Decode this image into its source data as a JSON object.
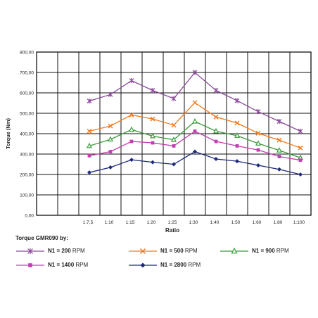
{
  "chart_data": {
    "type": "line",
    "xlabel": "Ratio",
    "ylabel": "Torque (Nm)",
    "ylim": [
      0,
      800
    ],
    "ytick_labels": [
      "0,00",
      "100,00",
      "200,00",
      "300,00",
      "400,00",
      "500,00",
      "600,00",
      "700,00",
      "800,00"
    ],
    "categories": [
      "1:7,5",
      "1:10",
      "1:15",
      "1:20",
      "1:25",
      "1:30",
      "1:40",
      "1:50",
      "1:60",
      "1:80",
      "1:100"
    ],
    "grid": true,
    "legend_title": "Torque GMR090 by:",
    "legend_placement": "bottom",
    "series": [
      {
        "name": "N1 = 200",
        "unit": "RPM",
        "color": "#8a4a9a",
        "marker": "asterisk",
        "values": [
          560,
          592,
          660,
          612,
          572,
          700,
          612,
          562,
          508,
          460,
          412
        ]
      },
      {
        "name": "N1 = 500",
        "unit": "RPM",
        "color": "#f07a20",
        "marker": "x",
        "values": [
          412,
          438,
          492,
          472,
          442,
          552,
          482,
          452,
          402,
          368,
          330
        ]
      },
      {
        "name": "N1 = 900",
        "unit": "RPM",
        "color": "#3a9a3a",
        "marker": "triangle",
        "values": [
          340,
          372,
          420,
          388,
          370,
          460,
          412,
          390,
          352,
          318,
          282
        ]
      },
      {
        "name": "N1 = 1400",
        "unit": "RPM",
        "color": "#c040b0",
        "marker": "square",
        "values": [
          292,
          312,
          362,
          355,
          340,
          412,
          362,
          340,
          320,
          288,
          270
        ]
      },
      {
        "name": "N1 = 2800",
        "unit": "RPM",
        "color": "#1f2a7a",
        "marker": "diamond",
        "values": [
          210,
          235,
          272,
          260,
          250,
          312,
          276,
          265,
          245,
          225,
          200
        ]
      }
    ]
  }
}
